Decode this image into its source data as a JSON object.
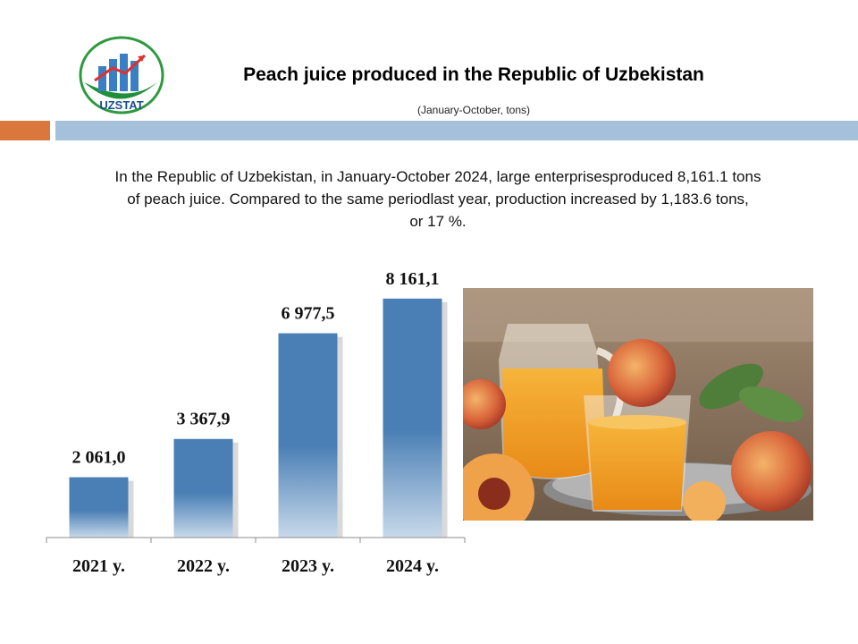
{
  "header": {
    "logo_text": "UZSTAT",
    "title": "Peach juice produced in the Republic of Uzbekistan",
    "subtitle": "(January-October, tons)"
  },
  "description": {
    "line1": "In the Republic of Uzbekistan,  in January-October 2024, large enterprisesproduced  8,161.1 tons",
    "line2": "of peach juice. Compared  to the same periodlast year, production  increased by 1,183.6 tons,",
    "line3": "or 17 %."
  },
  "chart_data": {
    "type": "bar",
    "categories": [
      "2021 y.",
      "2022 y.",
      "2023 y.",
      "2024 y."
    ],
    "values": [
      2061.0,
      3367.9,
      6977.5,
      8161.1
    ],
    "value_labels": [
      "2 061,0",
      "3 367,9",
      "6 977,5",
      "8 161,1"
    ],
    "ylim": [
      0,
      9500
    ],
    "grid": false,
    "legend": "none",
    "bar_color": "#4a7fb5",
    "bar_color_fade": "#c8d9ea"
  },
  "colors": {
    "accent_orange": "#d9773d",
    "accent_blue": "#a4c0da"
  },
  "photo": {
    "icon": "peach-juice-photo"
  }
}
